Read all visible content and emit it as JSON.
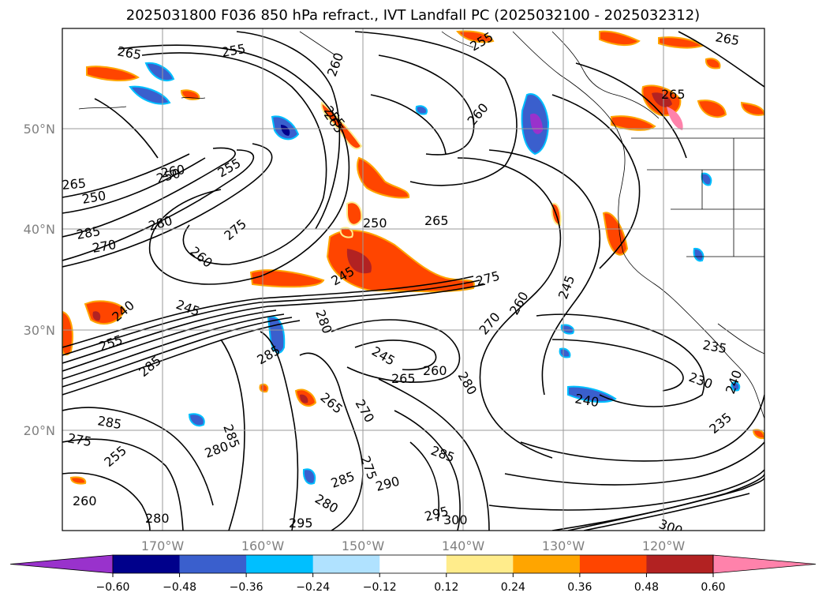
{
  "title": "2025031800 F036 850 hPa refract., IVT Landfall PC (2025032100 - 2025032312)",
  "map": {
    "lon_range": [
      -180,
      -110
    ],
    "lat_range": [
      10,
      60
    ],
    "lon_ticks": [
      {
        "label": "170°W"
      },
      {
        "label": "160°W"
      },
      {
        "label": "150°W"
      },
      {
        "label": "140°W"
      },
      {
        "label": "130°W"
      },
      {
        "label": "120°W"
      }
    ],
    "lat_ticks": [
      {
        "label": "20°N"
      },
      {
        "label": "30°N"
      },
      {
        "label": "40°N"
      },
      {
        "label": "50°N"
      }
    ]
  },
  "colorbar": {
    "colors": [
      "#9932cc",
      "#00008b",
      "#3a5fcd",
      "#00bfff",
      "#b0e2ff",
      "#ffffff",
      "#ffec8b",
      "#ffa500",
      "#ff4500",
      "#b22222",
      "#ff82ab"
    ],
    "tick_labels": [
      "−0.60",
      "−0.48",
      "−0.36",
      "−0.24",
      "−0.12",
      "0.12",
      "0.24",
      "0.36",
      "0.48",
      "0.60"
    ]
  },
  "contour_labels": [
    "265",
    "255",
    "260",
    "265",
    "255",
    "255",
    "260",
    "265",
    "265",
    "255",
    "260",
    "265",
    "250",
    "280",
    "285",
    "275",
    "270",
    "260",
    "250",
    "265",
    "245",
    "275",
    "245",
    "240",
    "280",
    "245",
    "285",
    "270",
    "260",
    "245",
    "255",
    "285",
    "265",
    "260",
    "280",
    "265",
    "270",
    "235",
    "230",
    "240",
    "240",
    "235",
    "285",
    "275",
    "280",
    "285",
    "290",
    "295",
    "300",
    "295",
    "285",
    "300",
    "280",
    "255",
    "260",
    "280",
    "285",
    "275",
    "250"
  ]
}
